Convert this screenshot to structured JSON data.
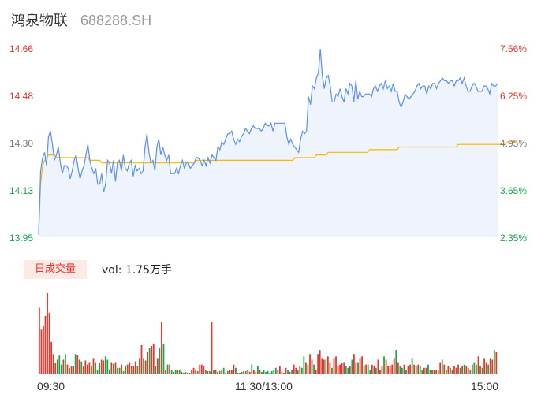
{
  "stock": {
    "name": "鸿泉物联",
    "code": "688288.SH"
  },
  "colors": {
    "price_line": "#5b8ff9",
    "avg_line": "#f5b800",
    "area_fill": "#eef3fc",
    "up": "#e8352c",
    "down": "#1aa34a"
  },
  "volume_panel": {
    "tag": "日成交量",
    "vol_text": "vol: 1.75万手"
  },
  "chart_data": {
    "type": "line",
    "price_axis": {
      "ticks": [
        "14.66",
        "14.48",
        "14.30",
        "14.13",
        "13.95"
      ],
      "ylim": [
        13.95,
        14.66
      ]
    },
    "percent_axis": {
      "ticks": [
        "7.56%",
        "6.25%",
        "4.95%",
        "3.65%",
        "2.35%"
      ]
    },
    "x_ticks": [
      "09:30",
      "11:30/13:00",
      "15:00"
    ],
    "series": [
      {
        "values": [
          13.96,
          14.2,
          14.25,
          14.27,
          14.22,
          14.33,
          14.35,
          14.3,
          14.24,
          14.26,
          14.29,
          14.23,
          14.19,
          14.22,
          14.22,
          14.21,
          14.17,
          14.2,
          14.24,
          14.26,
          14.21,
          14.17,
          14.2,
          14.22,
          14.26,
          14.3,
          14.24,
          14.21,
          14.19,
          14.21,
          14.15,
          14.15,
          14.19,
          14.12,
          14.15,
          14.24,
          14.23,
          14.19,
          14.24,
          14.16,
          14.23,
          14.24,
          14.2,
          14.26,
          14.21,
          14.2,
          14.23,
          14.24,
          14.18,
          14.22,
          14.2,
          14.21,
          14.19,
          14.2,
          14.29,
          14.34,
          14.27,
          14.23,
          14.24,
          14.2,
          14.29,
          14.32,
          14.26,
          14.29,
          14.26,
          14.24,
          14.26,
          14.19,
          14.19,
          14.19,
          14.21,
          14.19,
          14.22,
          14.24,
          14.21,
          14.23,
          14.23,
          14.21,
          14.22,
          14.23,
          14.25,
          14.25,
          14.24,
          14.22,
          14.24,
          14.22,
          14.25,
          14.23,
          14.26,
          14.25,
          14.24,
          14.29,
          14.28,
          14.31,
          14.3,
          14.32,
          14.34,
          14.34,
          14.35,
          14.32,
          14.3,
          14.32,
          14.31,
          14.33,
          14.34,
          14.36,
          14.35,
          14.34,
          14.36,
          14.37,
          14.36,
          14.36,
          14.36,
          14.35,
          14.36,
          14.38,
          14.37,
          14.37,
          14.38,
          14.35,
          14.38,
          14.38,
          14.38,
          14.38,
          14.38,
          14.38,
          14.33,
          14.3,
          14.32,
          14.3,
          14.29,
          14.28,
          14.27,
          14.32,
          14.35,
          14.34,
          14.35,
          14.48,
          14.45,
          14.52,
          14.51,
          14.55,
          14.57,
          14.66,
          14.56,
          14.51,
          14.55,
          14.56,
          14.52,
          14.46,
          14.46,
          14.49,
          14.48,
          14.51,
          14.48,
          14.46,
          14.51,
          14.49,
          14.53,
          14.52,
          14.46,
          14.54,
          14.47,
          14.5,
          14.48,
          14.48,
          14.49,
          14.49,
          14.49,
          14.48,
          14.51,
          14.52,
          14.5,
          14.52,
          14.53,
          14.51,
          14.54,
          14.51,
          14.52,
          14.5,
          14.53,
          14.5,
          14.5,
          14.46,
          14.44,
          14.46,
          14.49,
          14.48,
          14.47,
          14.48,
          14.49,
          14.5,
          14.52,
          14.53,
          14.51,
          14.52,
          14.52,
          14.49,
          14.52,
          14.51,
          14.53,
          14.53,
          14.51,
          14.53,
          14.54,
          14.55,
          14.54,
          14.54,
          14.53,
          14.54,
          14.54,
          14.52,
          14.54,
          14.54,
          14.55,
          14.53,
          14.55,
          14.52,
          14.5,
          14.5,
          14.52,
          14.53,
          14.52,
          14.5,
          14.5,
          14.5,
          14.52,
          14.52,
          14.51,
          14.49,
          14.53,
          14.52,
          14.52,
          14.53
        ]
      },
      {
        "values": [
          13.96,
          14.15,
          14.22,
          14.24,
          14.25,
          14.26,
          14.26,
          14.26,
          14.26,
          14.25,
          14.25,
          14.25,
          14.25,
          14.25,
          14.25,
          14.25,
          14.25,
          14.25,
          14.25,
          14.25,
          14.25,
          14.25,
          14.25,
          14.25,
          14.25,
          14.25,
          14.24,
          14.24,
          14.24,
          14.24,
          14.24,
          14.24,
          14.23,
          14.23,
          14.23,
          14.23,
          14.23,
          14.23,
          14.23,
          14.23,
          14.23,
          14.23,
          14.23,
          14.23,
          14.23,
          14.23,
          14.23,
          14.23,
          14.23,
          14.23,
          14.23,
          14.23,
          14.23,
          14.23,
          14.23,
          14.23,
          14.23,
          14.23,
          14.23,
          14.23,
          14.23,
          14.23,
          14.23,
          14.23,
          14.23,
          14.23,
          14.23,
          14.23,
          14.23,
          14.23,
          14.23,
          14.23,
          14.23,
          14.23,
          14.23,
          14.23,
          14.23,
          14.23,
          14.23,
          14.23,
          14.24,
          14.24,
          14.24,
          14.24,
          14.24,
          14.24,
          14.24,
          14.24,
          14.24,
          14.24,
          14.24,
          14.24,
          14.24,
          14.24,
          14.24,
          14.24,
          14.24,
          14.24,
          14.24,
          14.24,
          14.24,
          14.24,
          14.24,
          14.24,
          14.24,
          14.24,
          14.24,
          14.24,
          14.24,
          14.24,
          14.24,
          14.24,
          14.24,
          14.24,
          14.24,
          14.24,
          14.24,
          14.24,
          14.24,
          14.24,
          14.24,
          14.24,
          14.24,
          14.24,
          14.24,
          14.24,
          14.24,
          14.24,
          14.24,
          14.24,
          14.25,
          14.25,
          14.25,
          14.25,
          14.25,
          14.25,
          14.25,
          14.25,
          14.25,
          14.25,
          14.25,
          14.26,
          14.26,
          14.26,
          14.26,
          14.26,
          14.26,
          14.27,
          14.27,
          14.27,
          14.27,
          14.27,
          14.27,
          14.27,
          14.27,
          14.27,
          14.27,
          14.27,
          14.27,
          14.27,
          14.27,
          14.27,
          14.27,
          14.27,
          14.27,
          14.27,
          14.27,
          14.27,
          14.28,
          14.28,
          14.28,
          14.28,
          14.28,
          14.28,
          14.28,
          14.28,
          14.28,
          14.28,
          14.28,
          14.28,
          14.28,
          14.28,
          14.28,
          14.29,
          14.29,
          14.29,
          14.29,
          14.29,
          14.29,
          14.29,
          14.29,
          14.29,
          14.29,
          14.29,
          14.29,
          14.29,
          14.29,
          14.29,
          14.29,
          14.29,
          14.29,
          14.29,
          14.29,
          14.29,
          14.29,
          14.29,
          14.29,
          14.29,
          14.29,
          14.29,
          14.29,
          14.29,
          14.29,
          14.3,
          14.3,
          14.3,
          14.3,
          14.3,
          14.3,
          14.3,
          14.3,
          14.3,
          14.3,
          14.3,
          14.3,
          14.3,
          14.3,
          14.3,
          14.3,
          14.3,
          14.3,
          14.3,
          14.3,
          14.3,
          14.3,
          14.3,
          14.3,
          14.3,
          14.31,
          14.31,
          14.31,
          14.31,
          14.31,
          14.31
        ]
      }
    ],
    "volume": {
      "values": [
        82,
        55,
        60,
        72,
        100,
        76,
        40,
        25,
        14,
        18,
        23,
        12,
        18,
        25,
        12,
        8,
        10,
        10,
        25,
        24,
        18,
        16,
        10,
        17,
        12,
        15,
        10,
        20,
        15,
        5,
        14,
        18,
        17,
        22,
        18,
        6,
        15,
        13,
        15,
        8,
        8,
        12,
        4,
        10,
        12,
        15,
        10,
        10,
        16,
        10,
        20,
        36,
        20,
        17,
        28,
        32,
        35,
        38,
        10,
        20,
        32,
        65,
        38,
        5,
        12,
        12,
        5,
        3,
        5,
        5,
        5,
        3,
        2,
        3,
        2,
        2,
        5,
        8,
        5,
        4,
        12,
        12,
        10,
        5,
        4,
        4,
        65,
        5,
        5,
        3,
        4,
        5,
        8,
        2,
        4,
        5,
        5,
        12,
        8,
        2,
        2,
        3,
        4,
        4,
        5,
        3,
        12,
        5,
        3,
        10,
        5,
        3,
        5,
        3,
        4,
        2,
        4,
        5,
        8,
        5,
        10,
        3,
        2,
        8,
        5,
        3,
        5,
        12,
        8,
        5,
        10,
        8,
        22,
        15,
        12,
        25,
        18,
        12,
        5,
        25,
        30,
        20,
        18,
        18,
        22,
        15,
        8,
        20,
        22,
        10,
        12,
        14,
        15,
        10,
        8,
        10,
        18,
        25,
        15,
        15,
        20,
        22,
        10,
        12,
        12,
        5,
        12,
        10,
        8,
        18,
        5,
        10,
        22,
        18,
        10,
        10,
        12,
        20,
        30,
        15,
        10,
        8,
        12,
        5,
        10,
        12,
        20,
        12,
        10,
        12,
        10,
        5,
        8,
        8,
        12,
        5,
        5,
        5,
        5,
        5,
        15,
        18,
        12,
        5,
        10,
        8,
        5,
        10,
        8,
        12,
        8,
        10,
        12,
        10,
        8,
        5,
        12,
        15,
        12,
        22,
        10,
        8,
        20,
        15,
        12,
        20,
        18,
        30,
        28
      ],
      "up": [
        1,
        1,
        1,
        1,
        1,
        1,
        1,
        1,
        1,
        0,
        0,
        0,
        1,
        0,
        1,
        0,
        1,
        1,
        0,
        1,
        1,
        0,
        1,
        1,
        1,
        1,
        0,
        1,
        0,
        0,
        0,
        1,
        1,
        0,
        0,
        0,
        1,
        0,
        1,
        0,
        0,
        1,
        0,
        0,
        1,
        1,
        0,
        1,
        1,
        0,
        1,
        1,
        0,
        1,
        1,
        0,
        1,
        1,
        0,
        1,
        0,
        1,
        0,
        1,
        0,
        1,
        0,
        0,
        0,
        1,
        0,
        0,
        1,
        0,
        1,
        0,
        1,
        1,
        1,
        0,
        1,
        1,
        1,
        0,
        1,
        0,
        1,
        0,
        1,
        1,
        0,
        1,
        0,
        1,
        0,
        1,
        1,
        1,
        0,
        1,
        1,
        0,
        1,
        0,
        1,
        1,
        0,
        1,
        1,
        0,
        1,
        0,
        0,
        0,
        0,
        1,
        0,
        0,
        0,
        1,
        1,
        0,
        1,
        1,
        0,
        1,
        0,
        1,
        1,
        0,
        1,
        0,
        0,
        1,
        0,
        1,
        1,
        0,
        1,
        1,
        1,
        1,
        1,
        0,
        1,
        1,
        0,
        1,
        1,
        1,
        1,
        1,
        1,
        0,
        0,
        1,
        0,
        1,
        1,
        0,
        1,
        1,
        0,
        1,
        0,
        0,
        1,
        1,
        0,
        1,
        1,
        1,
        0,
        1,
        1,
        1,
        1,
        1,
        0,
        1,
        0,
        0,
        1,
        0,
        1,
        1,
        0,
        1,
        0,
        1,
        0,
        0,
        1,
        1,
        0,
        0,
        1,
        1,
        0,
        1,
        1,
        0,
        1,
        0,
        1,
        1,
        0,
        1,
        1,
        1,
        0,
        1,
        0,
        1,
        1,
        0,
        1,
        0,
        0,
        1,
        1,
        0,
        1,
        1,
        0,
        1,
        1,
        0,
        1
      ]
    }
  }
}
